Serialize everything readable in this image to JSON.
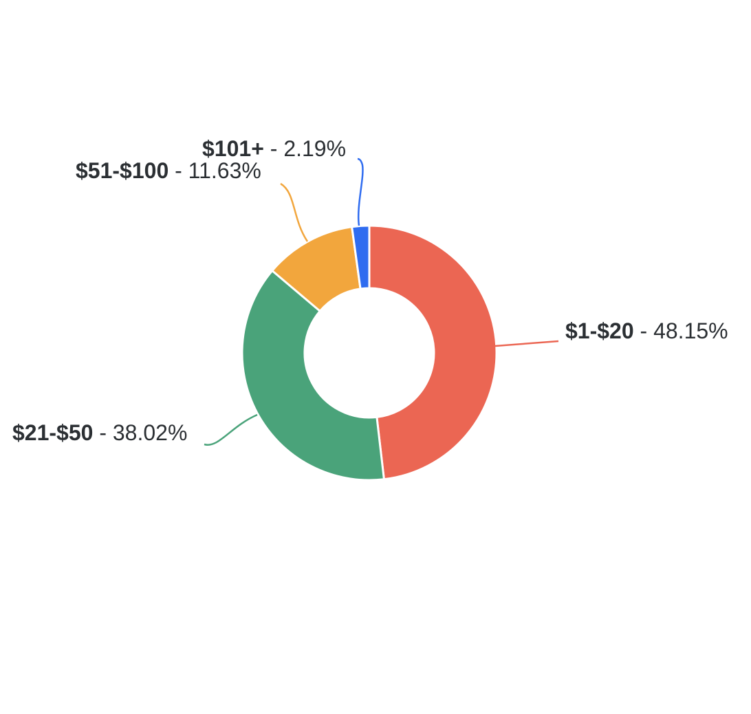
{
  "chart_data": {
    "type": "pie",
    "variant": "donut",
    "title": "",
    "categories": [
      "$1-$20",
      "$21-$50",
      "$51-$100",
      "$101+"
    ],
    "values": [
      48.15,
      38.02,
      11.63,
      2.19
    ],
    "unit": "%",
    "label_text": [
      "- 48.15%",
      "- 38.02%",
      "- 11.63%",
      "- 2.19%"
    ],
    "colors": [
      "#EB6653",
      "#4AA37A",
      "#F2A63D",
      "#2F6CF0"
    ],
    "legend": "none",
    "labels": "outside with leader lines"
  }
}
